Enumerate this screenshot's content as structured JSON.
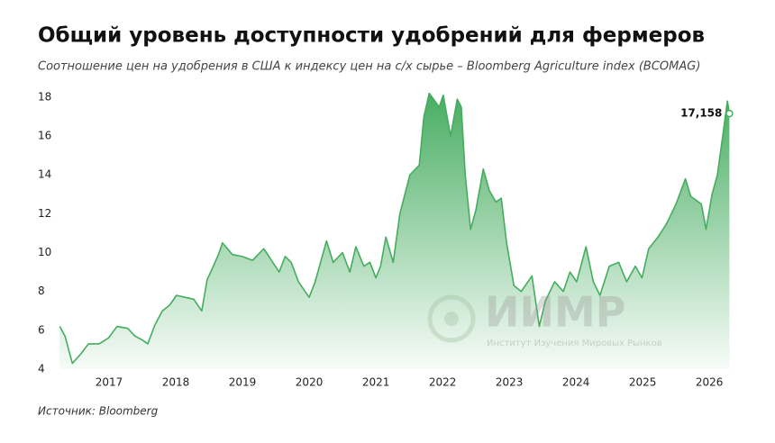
{
  "chart_data": {
    "type": "area",
    "title": "Общий уровень доступности удобрений для фермеров",
    "subtitle": "Соотношение цен на удобрения в США к индексу цен на с/х сырье – Bloomberg Agriculture index (BCOMAG)",
    "source": "Источник: Bloomberg",
    "watermark": {
      "title": "ИИМР",
      "subtitle": "Институт Изучения Мировых Рынков"
    },
    "color": "#45ad5e",
    "xlim": [
      2016.2,
      2026.4
    ],
    "xticks": [
      2017,
      2018,
      2019,
      2020,
      2021,
      2022,
      2023,
      2024,
      2025,
      2026
    ],
    "ylim": [
      4,
      18.6
    ],
    "yticks": [
      4,
      6,
      8,
      10,
      12,
      14,
      16,
      18
    ],
    "grid": false,
    "x": [
      2016.26,
      2016.34,
      2016.45,
      2016.58,
      2016.69,
      2016.85,
      2016.99,
      2017.12,
      2017.28,
      2017.39,
      2017.5,
      2017.58,
      2017.69,
      2017.8,
      2017.91,
      2018.01,
      2018.14,
      2018.27,
      2018.39,
      2018.47,
      2018.55,
      2018.64,
      2018.7,
      2018.85,
      2019.0,
      2019.15,
      2019.32,
      2019.55,
      2019.64,
      2019.73,
      2019.84,
      2020.0,
      2020.09,
      2020.26,
      2020.36,
      2020.5,
      2020.61,
      2020.7,
      2020.82,
      2020.91,
      2021.0,
      2021.07,
      2021.15,
      2021.26,
      2021.36,
      2021.51,
      2021.65,
      2021.72,
      2021.8,
      2021.95,
      2022.01,
      2022.12,
      2022.22,
      2022.28,
      2022.34,
      2022.42,
      2022.5,
      2022.61,
      2022.7,
      2022.8,
      2022.88,
      2022.96,
      2023.07,
      2023.18,
      2023.34,
      2023.45,
      2023.54,
      2023.68,
      2023.81,
      2023.91,
      2024.01,
      2024.15,
      2024.26,
      2024.36,
      2024.5,
      2024.64,
      2024.76,
      2024.89,
      2024.99,
      2025.09,
      2025.23,
      2025.36,
      2025.5,
      2025.64,
      2025.72,
      2025.88,
      2025.95,
      2026.04,
      2026.12,
      2026.2,
      2026.27,
      2026.3
    ],
    "values": [
      6.2,
      5.7,
      4.3,
      4.8,
      5.3,
      5.3,
      5.6,
      6.2,
      6.1,
      5.7,
      5.5,
      5.3,
      6.3,
      7.0,
      7.3,
      7.8,
      7.7,
      7.6,
      7.0,
      8.6,
      9.2,
      9.9,
      10.5,
      9.9,
      9.8,
      9.6,
      10.2,
      9.0,
      9.8,
      9.5,
      8.5,
      7.7,
      8.5,
      10.6,
      9.5,
      10.0,
      9.0,
      10.3,
      9.3,
      9.5,
      8.7,
      9.3,
      10.8,
      9.5,
      12.0,
      14.0,
      14.5,
      17.0,
      18.2,
      17.5,
      18.1,
      16.0,
      17.9,
      17.5,
      14.0,
      11.2,
      12.2,
      14.3,
      13.2,
      12.6,
      12.8,
      10.5,
      8.3,
      8.0,
      8.8,
      6.2,
      7.5,
      8.5,
      8.0,
      9.0,
      8.5,
      10.3,
      8.5,
      7.8,
      9.3,
      9.5,
      8.5,
      9.3,
      8.7,
      10.2,
      10.8,
      11.5,
      12.5,
      13.8,
      12.9,
      12.5,
      11.2,
      13.0,
      14.0,
      16.0,
      17.8,
      17.158
    ],
    "annotation": {
      "x": 2026.3,
      "value": 17.158,
      "label": "17,158"
    }
  }
}
